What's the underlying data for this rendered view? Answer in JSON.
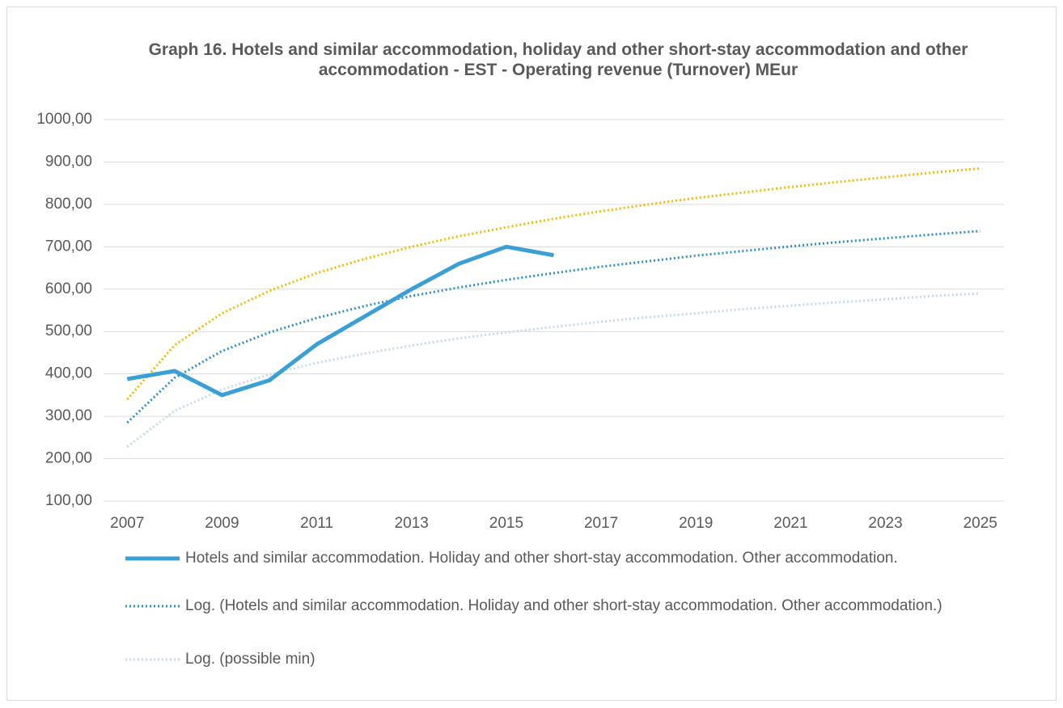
{
  "chart_data": {
    "type": "line",
    "title": "Graph 16. Hotels and similar accommodation, holiday and other short-stay accommodation and other accommodation  - EST - Operating revenue (Turnover) MEur",
    "x": [
      2007,
      2008,
      2009,
      2010,
      2011,
      2012,
      2013,
      2014,
      2015,
      2016,
      2017,
      2018,
      2019,
      2020,
      2021,
      2022,
      2023,
      2024,
      2025
    ],
    "xlim": [
      2006.5,
      2025.5
    ],
    "xticks": [
      2007,
      2009,
      2011,
      2013,
      2015,
      2017,
      2019,
      2021,
      2023,
      2025
    ],
    "ylim": [
      100,
      1000
    ],
    "yticks": [
      {
        "value": 100,
        "label": "100,00"
      },
      {
        "value": 200,
        "label": "200,00"
      },
      {
        "value": 300,
        "label": "300,00"
      },
      {
        "value": 400,
        "label": "400,00"
      },
      {
        "value": 500,
        "label": "500,00"
      },
      {
        "value": 600,
        "label": "600,00"
      },
      {
        "value": 700,
        "label": "700,00"
      },
      {
        "value": 800,
        "label": "800,00"
      },
      {
        "value": 900,
        "label": "900,00"
      },
      {
        "value": 1000,
        "label": "1000,00"
      }
    ],
    "grid": true,
    "series": [
      {
        "name": "Hotels and similar accommodation. Holiday and other short-stay accommodation. Other accommodation.",
        "color": "#3a9fd5",
        "style": "solid",
        "values": [
          388,
          407,
          350,
          385,
          470,
          535,
          600,
          660,
          700,
          680,
          null,
          null,
          null,
          null,
          null,
          null,
          null,
          null,
          null
        ]
      },
      {
        "name": "Log. (Hotels and similar accommodation. Holiday and other short-stay accommodation. Other accommodation.)",
        "color": "#2e8fc8",
        "style": "dotted",
        "values": [
          285,
          391,
          454,
          498,
          532,
          560,
          584,
          604,
          622,
          638,
          653,
          666,
          679,
          690,
          701,
          711,
          720,
          729,
          737
        ]
      },
      {
        "color": "#f5b800",
        "style": "dotted",
        "values": [
          340,
          468,
          543,
          596,
          638,
          671,
          700,
          725,
          746,
          766,
          784,
          800,
          815,
          828,
          841,
          853,
          864,
          875,
          885
        ]
      },
      {
        "name": "Log. (possible min)",
        "color": "#c5d9ea",
        "style": "dotted",
        "values": [
          228,
          313,
          363,
          399,
          426,
          448,
          467,
          484,
          498,
          511,
          523,
          534,
          543,
          553,
          561,
          569,
          576,
          584,
          590
        ]
      }
    ]
  }
}
